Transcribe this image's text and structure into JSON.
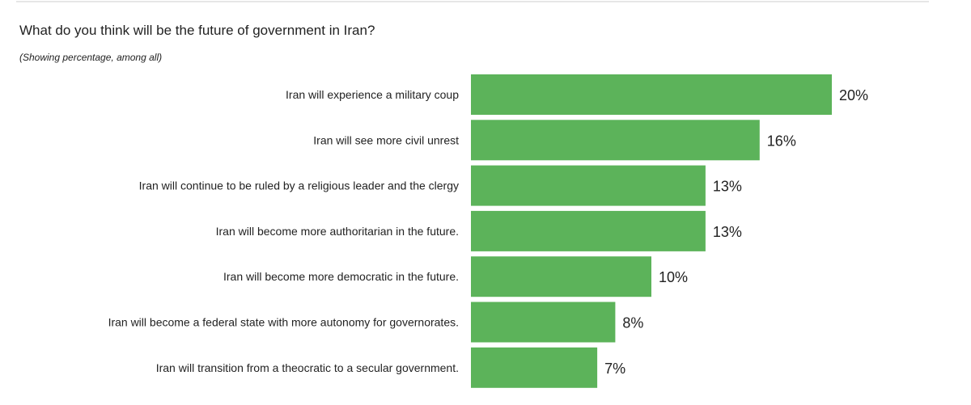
{
  "chart_data": {
    "type": "bar",
    "orientation": "horizontal",
    "title": "What do you think will be the future of government in Iran?",
    "subtitle": "(Showing percentage, among all)",
    "categories": [
      "Iran will experience a military coup",
      "Iran will see more civil unrest",
      "Iran will continue to be ruled by a religious leader and the clergy",
      "Iran will become more authoritarian in the future.",
      "Iran will become more democratic in the future.",
      "Iran will become a federal state with more autonomy for governorates.",
      "Iran will transition from a theocratic to a secular government."
    ],
    "values": [
      20,
      16,
      13,
      13,
      10,
      8,
      7
    ],
    "value_labels": [
      "20%",
      "16%",
      "13%",
      "13%",
      "10%",
      "8%",
      "7%"
    ],
    "xlim": [
      0,
      20
    ],
    "grid": false,
    "bar_color": "#5cb35a"
  }
}
